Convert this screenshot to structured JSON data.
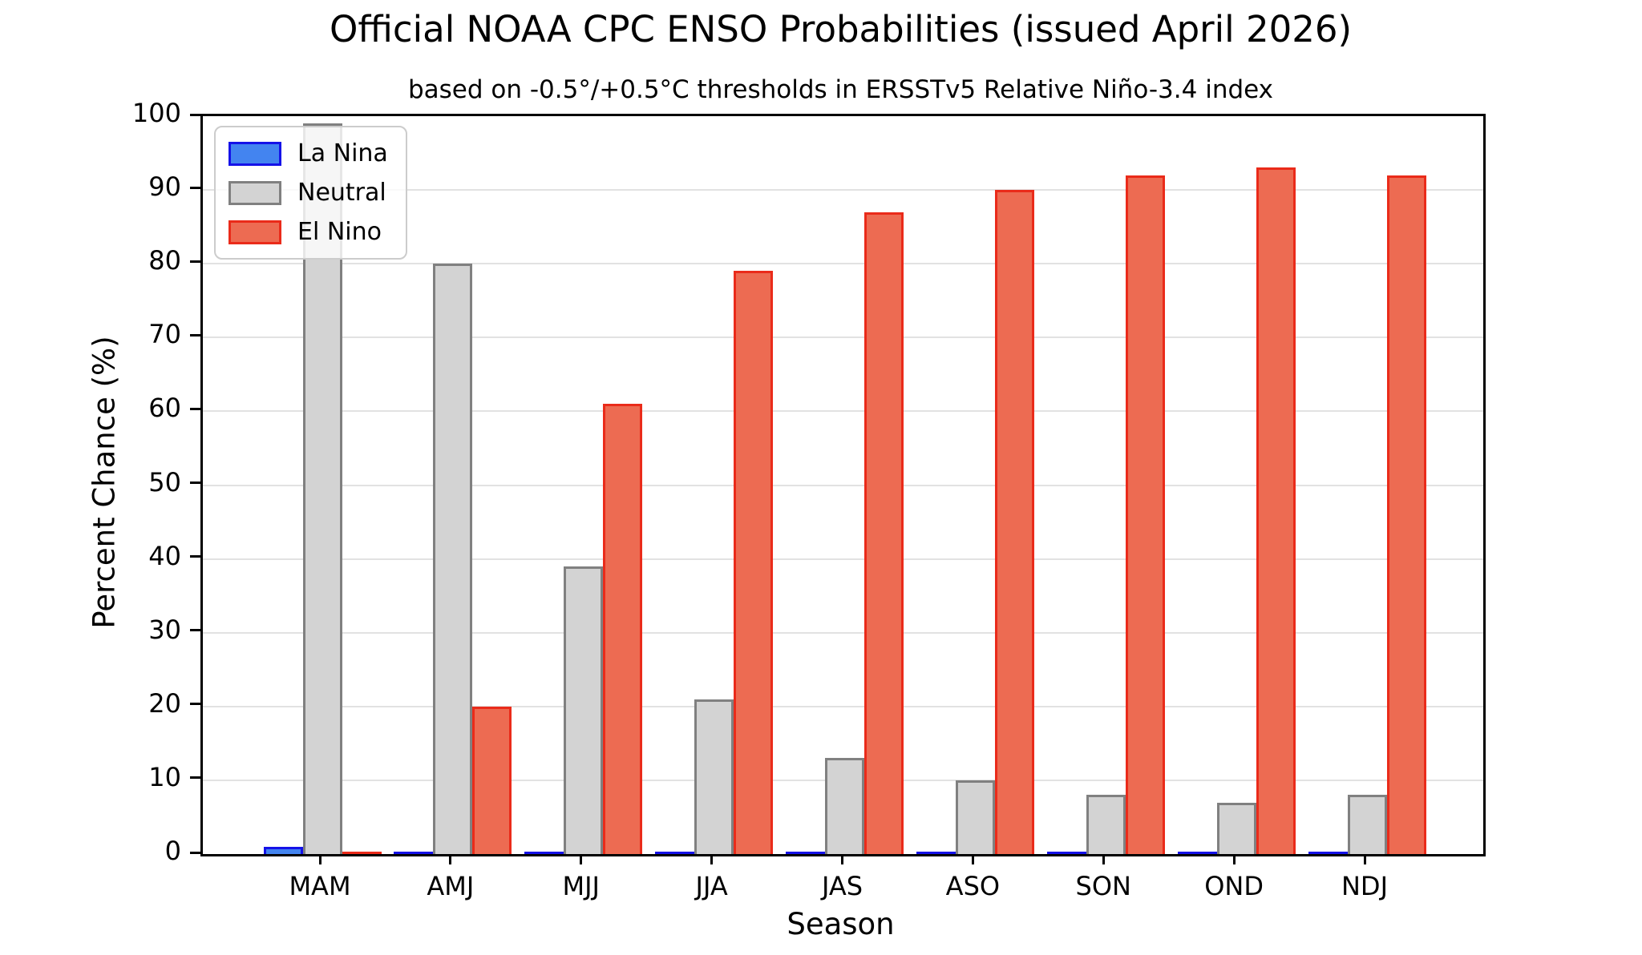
{
  "title": "Official NOAA CPC ENSO Probabilities (issued April 2026)",
  "subtitle": "based on -0.5°/+0.5°C thresholds in ERSSTv5 Relative Niño-3.4 index",
  "axes": {
    "xlabel": "Season",
    "ylabel": "Percent Chance (%)"
  },
  "legend": {
    "position": "upper left",
    "items": [
      "La Nina",
      "Neutral",
      "El Nino"
    ]
  },
  "colors": {
    "la_nina_fill": "#4384F0",
    "la_nina_edge": "#1512E8",
    "neutral_fill": "#D3D3D3",
    "neutral_edge": "#808080",
    "el_nino_fill": "#ED6B52",
    "el_nino_edge": "#EA2B1A",
    "gridline": "#E2E2E2",
    "axis": "#000000"
  },
  "chart_data": {
    "type": "bar",
    "title": "Official NOAA CPC ENSO Probabilities (issued April 2026)",
    "subtitle": "based on -0.5°/+0.5°C thresholds in ERSSTv5 Relative Niño-3.4 index",
    "xlabel": "Season",
    "ylabel": "Percent Chance (%)",
    "ylim": [
      0,
      100
    ],
    "yticks": [
      0,
      10,
      20,
      30,
      40,
      50,
      60,
      70,
      80,
      90,
      100
    ],
    "grid": true,
    "legend_position": "upper left",
    "categories": [
      "MAM",
      "AMJ",
      "MJJ",
      "JJA",
      "JAS",
      "ASO",
      "SON",
      "OND",
      "NDJ"
    ],
    "series": [
      {
        "name": "La Nina",
        "fill": "#4384F0",
        "edge": "#1512E8",
        "values": [
          1,
          0,
          0,
          0,
          0,
          0,
          0,
          0,
          0
        ]
      },
      {
        "name": "Neutral",
        "fill": "#D3D3D3",
        "edge": "#808080",
        "values": [
          99,
          80,
          39,
          21,
          13,
          10,
          8,
          7,
          8
        ]
      },
      {
        "name": "El Nino",
        "fill": "#ED6B52",
        "edge": "#EA2B1A",
        "values": [
          0,
          20,
          61,
          79,
          87,
          90,
          92,
          93,
          92
        ]
      }
    ]
  }
}
